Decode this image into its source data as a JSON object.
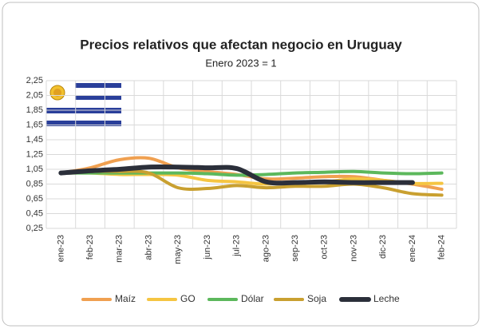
{
  "chart_data": {
    "type": "line",
    "title": "Precios relativos que afectan negocio en Uruguay",
    "subtitle": "Enero 2023 = 1",
    "categories": [
      "ene-23",
      "feb-23",
      "mar-23",
      "abr-23",
      "may-23",
      "jun-23",
      "jul-23",
      "ago-23",
      "sep-23",
      "oct-23",
      "nov-23",
      "dic-23",
      "ene-24",
      "feb-24"
    ],
    "series": [
      {
        "name": "Maíz",
        "color": "#f0a050",
        "values": [
          1.0,
          1.07,
          1.18,
          1.2,
          1.07,
          1.02,
          0.98,
          0.92,
          0.93,
          0.95,
          0.95,
          0.9,
          0.85,
          0.78
        ]
      },
      {
        "name": "GO",
        "color": "#f5c542",
        "values": [
          1.0,
          1.0,
          0.98,
          0.98,
          0.97,
          0.9,
          0.88,
          0.85,
          0.88,
          0.88,
          0.92,
          0.9,
          0.86,
          0.86
        ]
      },
      {
        "name": "Dólar",
        "color": "#5cb85c",
        "values": [
          1.0,
          1.0,
          1.0,
          1.0,
          1.0,
          0.99,
          0.97,
          0.98,
          1.0,
          1.01,
          1.02,
          1.0,
          0.99,
          1.0
        ]
      },
      {
        "name": "Soja",
        "color": "#c9a030",
        "values": [
          1.0,
          1.02,
          1.02,
          1.0,
          0.8,
          0.79,
          0.83,
          0.8,
          0.82,
          0.82,
          0.85,
          0.8,
          0.72,
          0.7
        ]
      },
      {
        "name": "Leche",
        "color": "#2b2f3a",
        "values": [
          1.0,
          1.03,
          1.05,
          1.08,
          1.08,
          1.07,
          1.06,
          0.88,
          0.87,
          0.88,
          0.87,
          0.87,
          0.87,
          null
        ]
      }
    ],
    "ylim": [
      0.25,
      2.25
    ],
    "yticks": [
      {
        "value": 0.25,
        "label": "0,25"
      },
      {
        "value": 0.45,
        "label": "0,45"
      },
      {
        "value": 0.65,
        "label": "0,65"
      },
      {
        "value": 0.85,
        "label": "0,85"
      },
      {
        "value": 1.05,
        "label": "1,05"
      },
      {
        "value": 1.25,
        "label": "1,25"
      },
      {
        "value": 1.45,
        "label": "1,45"
      },
      {
        "value": 1.65,
        "label": "1,65"
      },
      {
        "value": 1.85,
        "label": "1,85"
      },
      {
        "value": 2.05,
        "label": "2,05"
      },
      {
        "value": 2.25,
        "label": "2,25"
      }
    ],
    "grid": true
  }
}
